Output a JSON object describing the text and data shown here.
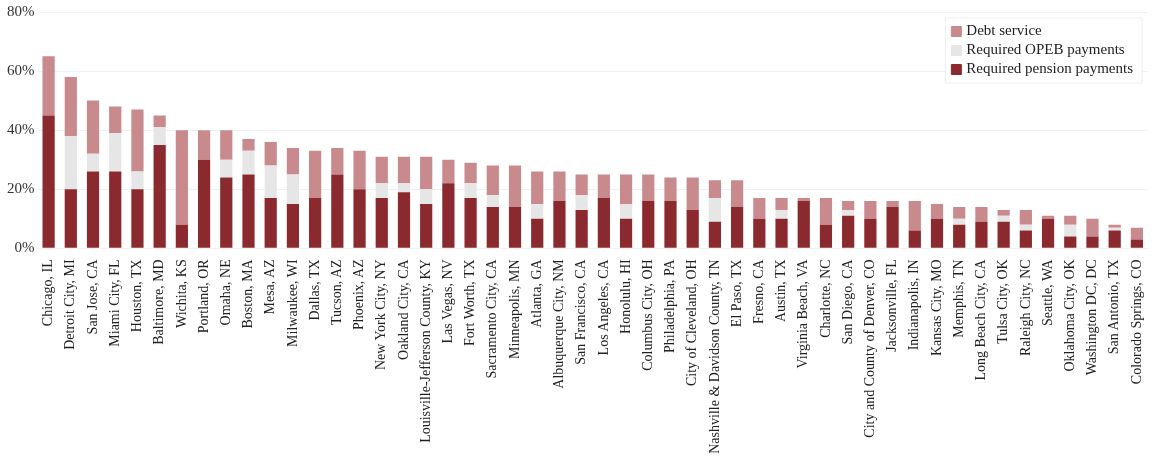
{
  "chart_data": {
    "type": "bar",
    "stacked": true,
    "categories": [
      "Chicago, IL",
      "Detroit City, MI",
      "San Jose, CA",
      "Miami City, FL",
      "Houston, TX",
      "Baltimore, MD",
      "Wichita, KS",
      "Portland, OR",
      "Omaha, NE",
      "Boston, MA",
      "Mesa, AZ",
      "Milwaukee, WI",
      "Dallas, TX",
      "Tucson, AZ",
      "Phoenix, AZ",
      "New York City, NY",
      "Oakland City, CA",
      "Louisville-Jefferson County, KY",
      "Las Vegas, NV",
      "Fort Worth, TX",
      "Sacramento City, CA",
      "Minneapolis, MN",
      "Atlanta, GA",
      "Albuquerque City, NM",
      "San Francisco, CA",
      "Los Angeles, CA",
      "Honolulu, HI",
      "Columbus City, OH",
      "Philadelphia, PA",
      "City of Cleveland, OH",
      "Nashville & Davidson County, TN",
      "El Paso, TX",
      "Fresno, CA",
      "Austin, TX",
      "Virginia Beach, VA",
      "Charlotte, NC",
      "San Diego, CA",
      "City and County of Denver, CO",
      "Jacksonville, FL",
      "Indianapolis, IN",
      "Kansas City, MO",
      "Memphis, TN",
      "Long Beach City, CA",
      "Tulsa City, OK",
      "Raleigh City, NC",
      "Seattle, WA",
      "Oklahoma City, OK",
      "Washington DC, DC",
      "San Antonio, TX",
      "Colorado Springs, CO"
    ],
    "series": [
      {
        "name": "Required pension payments",
        "color": "#8b2a2e",
        "values": [
          45,
          20,
          26,
          26,
          20,
          35,
          8,
          30,
          24,
          25,
          17,
          15,
          17,
          25,
          20,
          17,
          19,
          15,
          22,
          17,
          14,
          14,
          10,
          16,
          13,
          17,
          10,
          16,
          16,
          13,
          9,
          14,
          10,
          10,
          16,
          8,
          11,
          10,
          14,
          6,
          10,
          8,
          9,
          9,
          6,
          10,
          4,
          4,
          6,
          3
        ]
      },
      {
        "name": "Required OPEB payments",
        "color": "#e6e6e6",
        "values": [
          0,
          18,
          6,
          13,
          6,
          6,
          0,
          0,
          6,
          8,
          11,
          10,
          0,
          0,
          0,
          5,
          3,
          5,
          0,
          5,
          4,
          0,
          5,
          0,
          5,
          0,
          5,
          0,
          0,
          0,
          8,
          0,
          0,
          3,
          0,
          0,
          2,
          0,
          0,
          0,
          0,
          2,
          0,
          2,
          2,
          0,
          4,
          0,
          1,
          0
        ]
      },
      {
        "name": "Debt service",
        "color": "#c98a8d",
        "values": [
          20,
          20,
          18,
          9,
          21,
          4,
          32,
          10,
          10,
          4,
          8,
          9,
          16,
          9,
          13,
          9,
          9,
          11,
          8,
          7,
          10,
          14,
          11,
          10,
          7,
          8,
          10,
          9,
          8,
          11,
          6,
          9,
          7,
          4,
          1,
          9,
          3,
          6,
          2,
          10,
          5,
          4,
          5,
          2,
          5,
          1,
          3,
          6,
          1,
          4
        ]
      }
    ],
    "ylim": [
      0,
      80
    ],
    "yticks": [
      {
        "value": 0,
        "label": "0%"
      },
      {
        "value": 20,
        "label": "20%"
      },
      {
        "value": 40,
        "label": "40%"
      },
      {
        "value": 60,
        "label": "60%"
      },
      {
        "value": 80,
        "label": "80%"
      }
    ],
    "grid": "y",
    "legend": "top right"
  }
}
